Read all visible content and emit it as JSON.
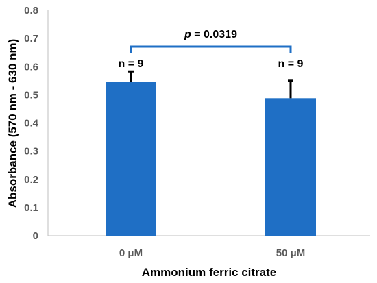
{
  "chart_data": {
    "type": "bar",
    "categories": [
      "0 μM",
      "50 μM"
    ],
    "values": [
      0.545,
      0.488
    ],
    "error": [
      0.038,
      0.062
    ],
    "n_labels": [
      "n = 9",
      "n = 9"
    ],
    "xlabel": "Ammonium ferric citrate",
    "ylabel": "Absorbance (570 nm - 630 nm)",
    "ylim": [
      0,
      0.8
    ],
    "yticks": [
      "0",
      "0.1",
      "0.2",
      "0.3",
      "0.4",
      "0.5",
      "0.6",
      "0.7",
      "0.8"
    ],
    "grid": false,
    "bar_color": "#1F6FC5",
    "bracket_color": "#1F6FC5",
    "significance": {
      "p_symbol": "p",
      "p_text": " = 0.0319"
    }
  }
}
